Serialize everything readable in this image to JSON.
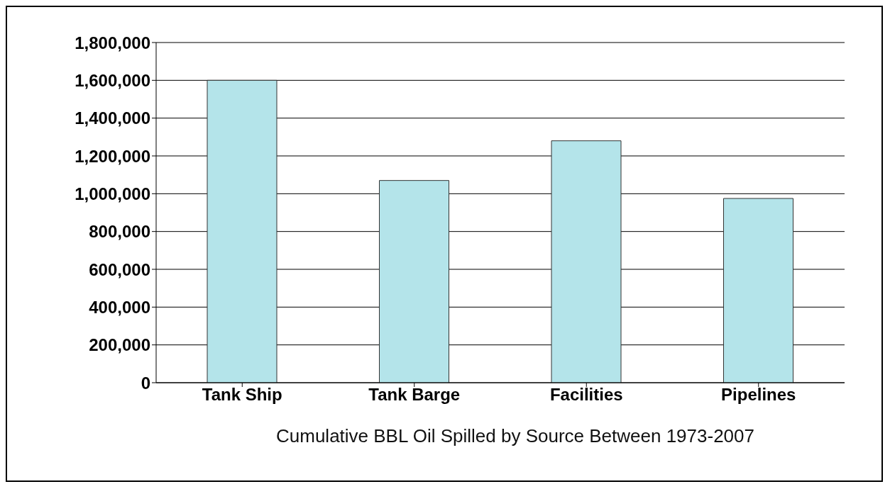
{
  "chart_data": {
    "type": "bar",
    "xlabel": "Cumulative BBL Oil Spilled by Source Between 1973-2007",
    "categories": [
      "Tank Ship",
      "Tank Barge",
      "Facilities",
      "Pipelines"
    ],
    "values": [
      1600000,
      1070000,
      1280000,
      975000
    ],
    "color": "#b4e4ea",
    "ylim": [
      0,
      1800000
    ],
    "yticks": [
      0,
      {
        "value": 200000,
        "label": "200,000"
      },
      {
        "value": 400000,
        "label": "400,000"
      },
      {
        "value": 600000,
        "label": "600,000"
      },
      {
        "value": 800000,
        "label": "800,000"
      },
      {
        "value": 1000000,
        "label": "1,000,000"
      },
      {
        "value": 1200000,
        "label": "1,200,000"
      },
      {
        "value": 1400000,
        "label": "1,400,000"
      },
      {
        "value": 1600000,
        "label": "1,600,000"
      },
      {
        "value": 1800000,
        "label": "1,800,000"
      }
    ],
    "grid": "y"
  }
}
